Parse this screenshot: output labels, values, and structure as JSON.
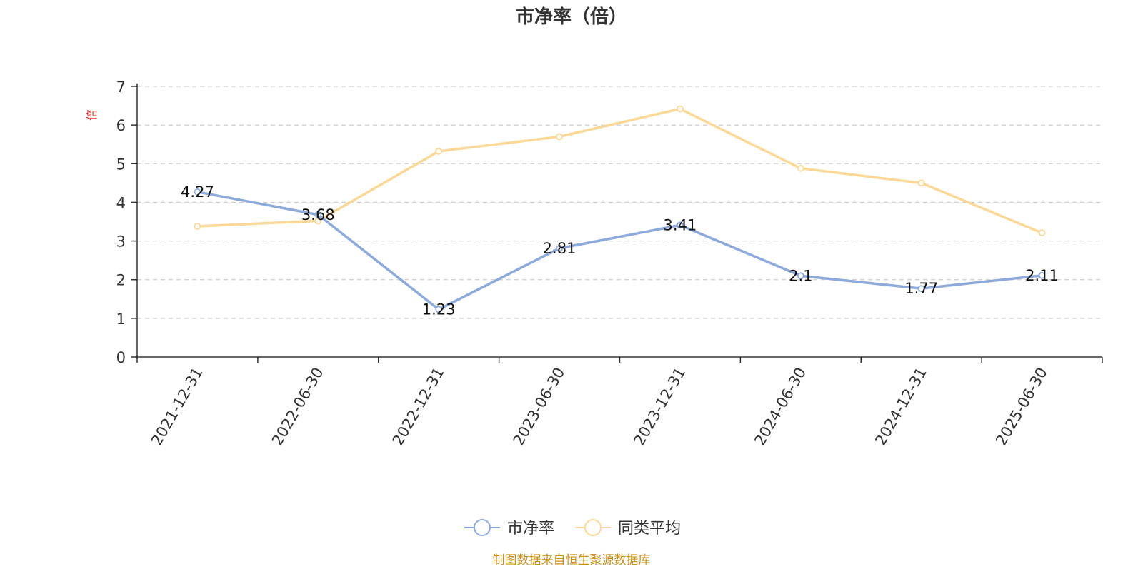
{
  "chart_data": {
    "type": "line",
    "title": "市净率（倍）",
    "ylabel": "倍",
    "xlabel": "",
    "categories": [
      "2021-12-31",
      "2022-06-30",
      "2022-12-31",
      "2023-06-30",
      "2023-12-31",
      "2024-06-30",
      "2024-12-31",
      "2025-06-30"
    ],
    "ylim": [
      0,
      7
    ],
    "yticks": [
      "0",
      "1",
      "2",
      "3",
      "4",
      "5",
      "6",
      "7"
    ],
    "grid": true,
    "legend_position": "bottom",
    "series": [
      {
        "name": "市净率",
        "color": "#8eaadb",
        "values": [
          4.27,
          3.68,
          1.23,
          2.81,
          3.41,
          2.1,
          1.77,
          2.11
        ],
        "labels": [
          "4.27",
          "3.68",
          "1.23",
          "2.81",
          "3.41",
          "2.1",
          "1.77",
          "2.11"
        ]
      },
      {
        "name": "同类平均",
        "color": "#fad898",
        "values": [
          3.38,
          3.52,
          5.32,
          5.7,
          6.42,
          4.88,
          4.5,
          3.21
        ]
      }
    ]
  },
  "source_note": "制图数据来自恒生聚源数据库"
}
